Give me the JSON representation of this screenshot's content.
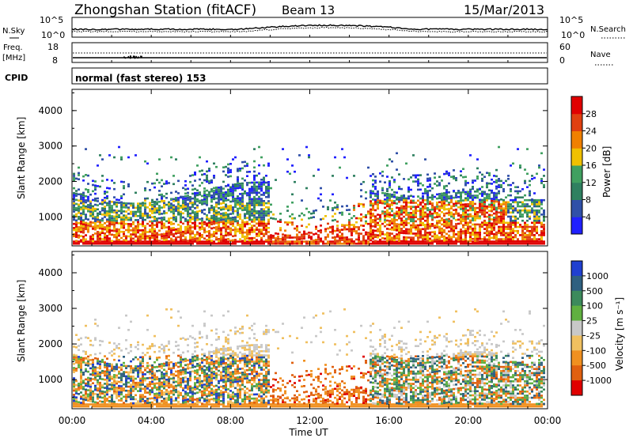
{
  "header": {
    "station": "Zhongshan Station (fitACF)",
    "beam": "Beam 13",
    "date": "15/Mar/2013"
  },
  "sky_panel": {
    "left_label": "N.Sky",
    "right_label": "N.Search",
    "left_ticks": [
      "10^5",
      "10^0"
    ],
    "right_ticks": [
      "10^5",
      "10^0"
    ]
  },
  "freq_panel": {
    "left_label_top": "Freq.",
    "left_label_unit": "[MHz]",
    "left_ticks": [
      "18",
      "8"
    ],
    "right_ticks": [
      "60",
      "0"
    ],
    "right_label": "Nave"
  },
  "cpid": {
    "label": "CPID",
    "value": "normal (fast stereo) 153"
  },
  "chart_data": [
    {
      "type": "heatmap",
      "name": "power",
      "ylabel": "Slant Range [km]",
      "yticks": [
        "1000",
        "2000",
        "3000",
        "4000"
      ],
      "ylim": [
        180,
        4600
      ],
      "xlim_hours": [
        0,
        24
      ],
      "colorbar_label": "Power [dB]",
      "colorbar_ticks": [
        "4",
        "8",
        "12",
        "16",
        "20",
        "24",
        "28"
      ],
      "colors": [
        "#2020ff",
        "#3050a8",
        "#2f8060",
        "#40a060",
        "#f0c000",
        "#f08000",
        "#e04010",
        "#e00000"
      ]
    },
    {
      "type": "heatmap",
      "name": "velocity",
      "ylabel": "Slant Range [km]",
      "yticks": [
        "1000",
        "2000",
        "3000",
        "4000"
      ],
      "ylim": [
        180,
        4600
      ],
      "xlim_hours": [
        0,
        24
      ],
      "xlabel": "Time UT",
      "xticks": [
        "00:00",
        "04:00",
        "08:00",
        "12:00",
        "16:00",
        "20:00",
        "00:00"
      ],
      "colorbar_label": "Velocity [m s⁻¹]",
      "colorbar_ticks": [
        "1000",
        "500",
        "100",
        "25",
        "-25",
        "-100",
        "-500",
        "-1000"
      ],
      "colors": [
        "#2040d0",
        "#2f6080",
        "#3c8a5c",
        "#60b040",
        "#c8c8c8",
        "#f0c060",
        "#f09020",
        "#e06010",
        "#e00000"
      ]
    }
  ]
}
